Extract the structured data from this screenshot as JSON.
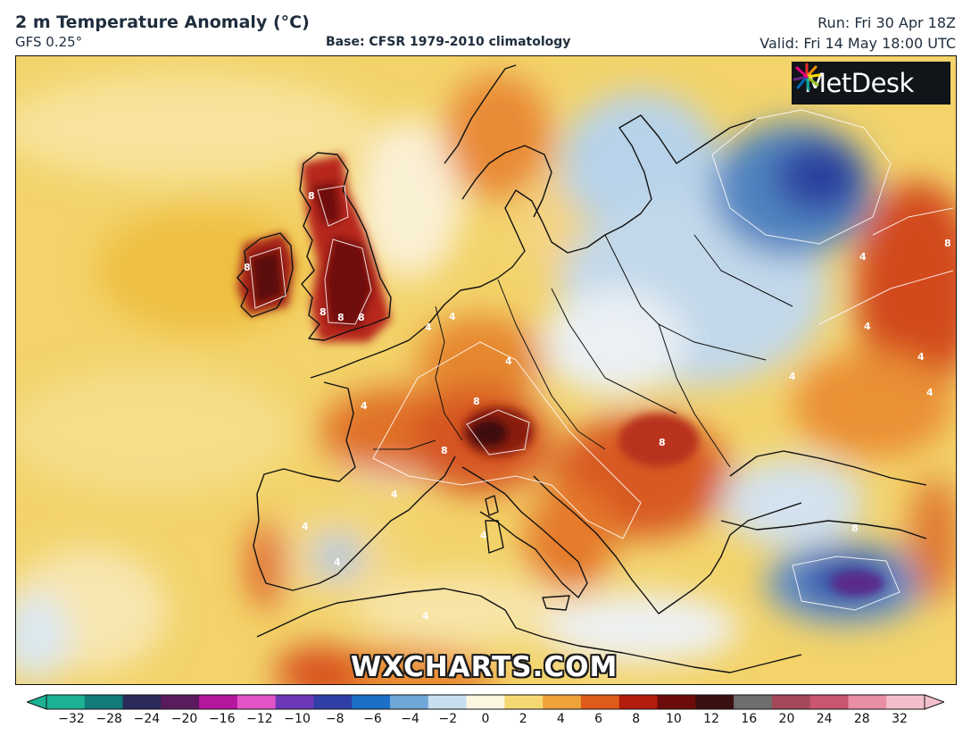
{
  "header": {
    "title": "2 m Temperature Anomaly (°C)",
    "model": "GFS 0.25°",
    "base": "Base: CFSR 1979-2010 climatology",
    "run": "Run: Fri 30 Apr 18Z",
    "valid": "Valid: Fri 14 May 18:00 UTC"
  },
  "logo": {
    "text": "MetDesk",
    "icon": "starburst-icon"
  },
  "watermark": "WXCHARTS.COM",
  "colorbar": {
    "ticks": [
      "−32",
      "−28",
      "−24",
      "−20",
      "−16",
      "−12",
      "−10",
      "−8",
      "−6",
      "−4",
      "−2",
      "0",
      "2",
      "4",
      "6",
      "8",
      "10",
      "12",
      "16",
      "20",
      "24",
      "28",
      "32"
    ],
    "colors": [
      "#1bb394",
      "#127a78",
      "#2b2a5a",
      "#5a1a5e",
      "#b5169e",
      "#e255c6",
      "#6d38b8",
      "#2f3fa6",
      "#1c6fc6",
      "#6fa8d8",
      "#c8dff0",
      "#fdf6e0",
      "#f6d873",
      "#eea23a",
      "#de5b1a",
      "#b21c0d",
      "#6b0c0b",
      "#3a1010",
      "#6e6e6e",
      "#a5485a",
      "#c9556f",
      "#e88fa5",
      "#f4bfcc"
    ]
  },
  "map_labels": [
    "8",
    "8",
    "8",
    "8",
    "8",
    "4",
    "4",
    "4",
    "4",
    "8",
    "8",
    "8",
    "4",
    "4",
    "4",
    "4",
    "4",
    "8",
    "4",
    "4",
    "4",
    "4",
    "8",
    "4"
  ]
}
